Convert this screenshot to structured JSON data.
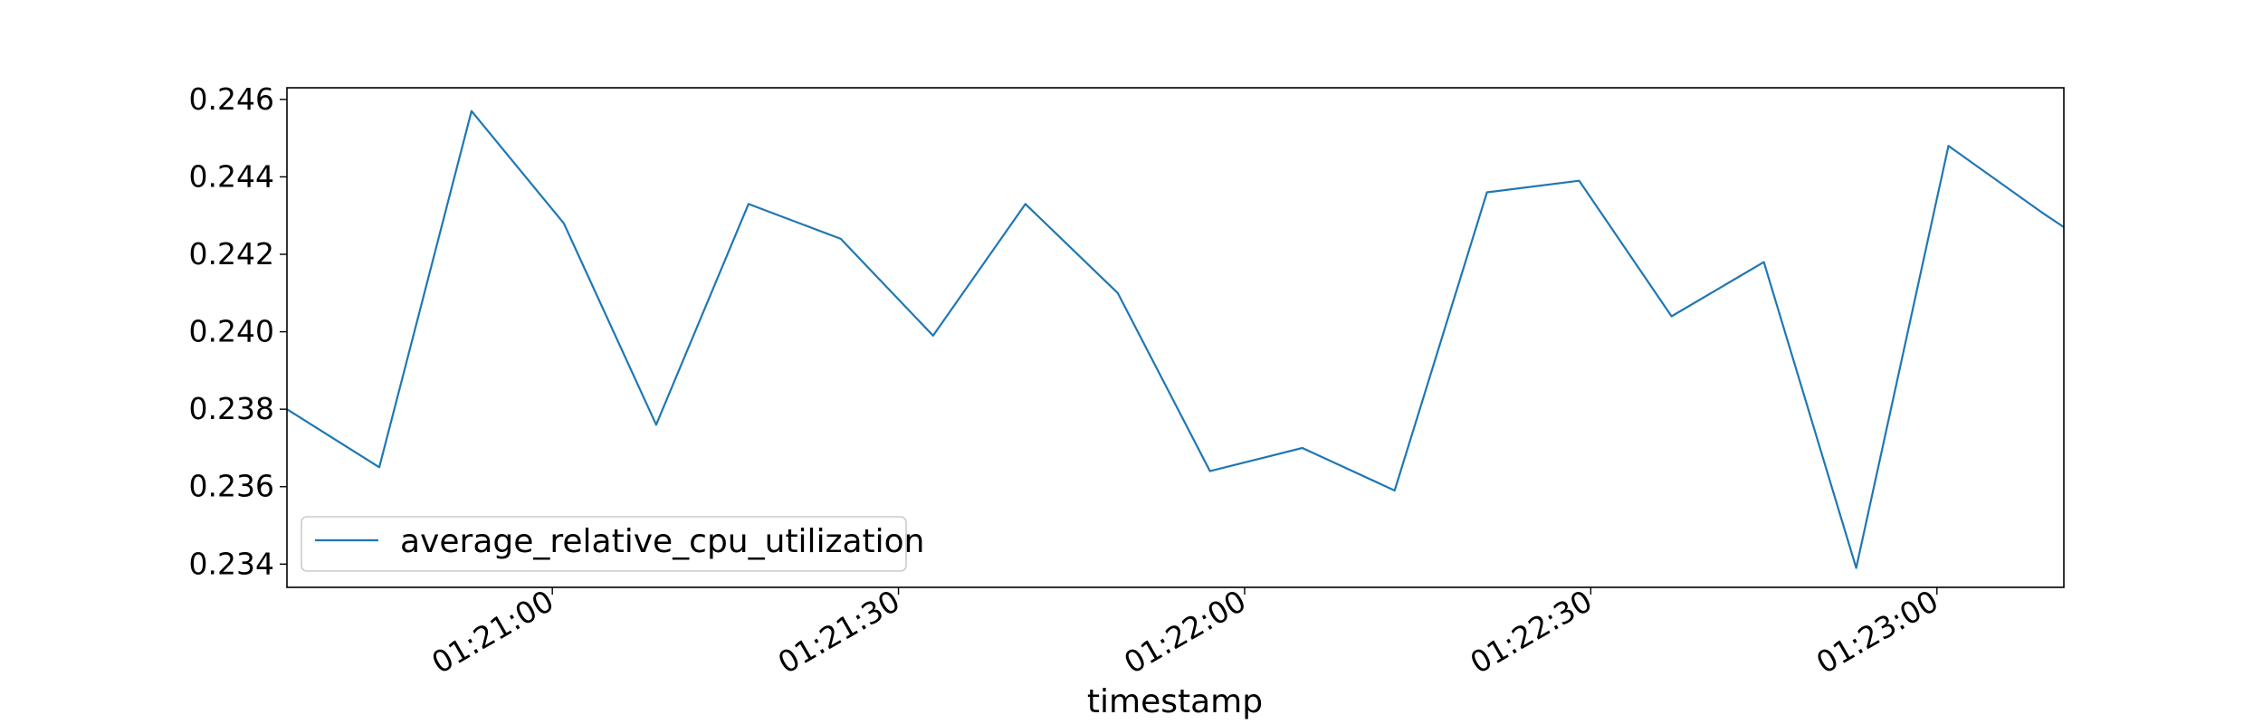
{
  "chart_data": {
    "type": "line",
    "xlabel": "timestamp",
    "ylabel": "",
    "xlim": [
      "01:20:37",
      "01:23:11"
    ],
    "ylim": [
      0.2334,
      0.2463
    ],
    "x_ticks": [
      "01:21:00",
      "01:21:30",
      "01:22:00",
      "01:22:30",
      "01:23:00"
    ],
    "y_ticks": [
      "0.234",
      "0.236",
      "0.238",
      "0.240",
      "0.242",
      "0.244",
      "0.246"
    ],
    "grid": false,
    "legend_position": "lower-left",
    "series": [
      {
        "name": "average_relative_cpu_utilization",
        "color": "#1f77b4",
        "x": [
          "01:20:37",
          "01:20:45",
          "01:20:53",
          "01:21:01",
          "01:21:09",
          "01:21:17",
          "01:21:25",
          "01:21:33",
          "01:21:41",
          "01:21:49",
          "01:21:57",
          "01:22:05",
          "01:22:13",
          "01:22:21",
          "01:22:29",
          "01:22:37",
          "01:22:45",
          "01:22:53",
          "01:23:01",
          "01:23:09",
          "01:23:11"
        ],
        "values": [
          0.238,
          0.2365,
          0.2457,
          0.2428,
          0.2376,
          0.2433,
          0.2424,
          0.2399,
          0.2433,
          0.241,
          0.2364,
          0.237,
          0.2359,
          0.2436,
          0.2439,
          0.2404,
          0.2418,
          0.2339,
          0.2448,
          0.2431,
          0.2427
        ]
      }
    ]
  }
}
